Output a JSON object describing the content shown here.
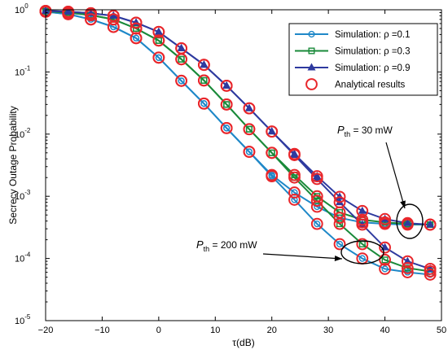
{
  "chart_data": {
    "type": "line",
    "xlabel": "τ(dB)",
    "ylabel": "Secrecy Outage Probability",
    "xlim": [
      -20,
      50
    ],
    "ylim": [
      1e-05,
      1
    ],
    "yscale": "log",
    "grid": false,
    "legend_position": "top-right",
    "x_ticks": [
      "−20",
      "−10",
      "0",
      "10",
      "20",
      "30",
      "40",
      "50"
    ],
    "y_ticks": [
      {
        "base": "10",
        "exp": "0"
      },
      {
        "base": "10",
        "exp": "-1"
      },
      {
        "base": "10",
        "exp": "-2"
      },
      {
        "base": "10",
        "exp": "-3"
      },
      {
        "base": "10",
        "exp": "-4"
      },
      {
        "base": "10",
        "exp": "-5"
      }
    ],
    "x": [
      -20,
      -16,
      -12,
      -8,
      -4,
      0,
      4,
      8,
      12,
      16,
      20,
      24,
      28,
      32,
      36,
      40,
      44,
      48
    ],
    "series": [
      {
        "name": "Simulation: ρ =0.1",
        "marker": "circle",
        "color": "#1f88c8",
        "curves": [
          {
            "label": "Pth = 30 mW",
            "values": [
              0.93,
              0.85,
              0.7,
              0.53,
              0.35,
              0.17,
              0.072,
              0.031,
              0.0125,
              0.0052,
              0.0022,
              0.00115,
              0.00068,
              0.00045,
              0.00038,
              0.00036,
              0.00035,
              0.00035
            ]
          },
          {
            "label": "Pth = 200 mW",
            "values": [
              0.93,
              0.85,
              0.7,
              0.53,
              0.35,
              0.17,
              0.072,
              0.031,
              0.0125,
              0.0052,
              0.0021,
              0.00088,
              0.00036,
              0.00017,
              0.0001,
              6.8e-05,
              6e-05,
              5.5e-05
            ]
          }
        ]
      },
      {
        "name": "Simulation: ρ =0.3",
        "marker": "square",
        "color": "#1a8a3a",
        "curves": [
          {
            "label": "Pth = 30 mW",
            "values": [
              0.95,
              0.9,
              0.82,
              0.7,
              0.5,
              0.32,
              0.16,
              0.073,
              0.03,
              0.012,
              0.005,
              0.0022,
              0.001,
              0.00055,
              0.00042,
              0.00038,
              0.00036,
              0.00035
            ]
          },
          {
            "label": "Pth = 200 mW",
            "values": [
              0.95,
              0.9,
              0.82,
              0.7,
              0.5,
              0.32,
              0.16,
              0.073,
              0.03,
              0.012,
              0.005,
              0.002,
              0.00085,
              0.00036,
              0.00017,
              9.5e-05,
              7e-05,
              6.2e-05
            ]
          }
        ]
      },
      {
        "name": "Simulation: ρ =0.9",
        "marker": "triangle",
        "color": "#2e3a9f",
        "curves": [
          {
            "label": "Pth = 30 mW",
            "values": [
              0.96,
              0.93,
              0.88,
              0.8,
              0.62,
              0.44,
              0.24,
              0.13,
              0.06,
              0.026,
              0.011,
              0.0048,
              0.0021,
              0.00098,
              0.00058,
              0.00043,
              0.00037,
              0.00035
            ]
          },
          {
            "label": "Pth = 200 mW",
            "values": [
              0.96,
              0.93,
              0.88,
              0.8,
              0.62,
              0.44,
              0.24,
              0.13,
              0.06,
              0.026,
              0.011,
              0.0046,
              0.0019,
              0.0008,
              0.00035,
              0.00015,
              9e-05,
              6.8e-05
            ]
          }
        ]
      },
      {
        "name": "Analytical results",
        "marker": "open-circle",
        "color": "#e8262b"
      }
    ],
    "annotations": [
      {
        "main": "P",
        "sub": "th",
        "rest": " = 30 mW"
      },
      {
        "main": "P",
        "sub": "th",
        "rest": " = 200 mW"
      }
    ]
  }
}
